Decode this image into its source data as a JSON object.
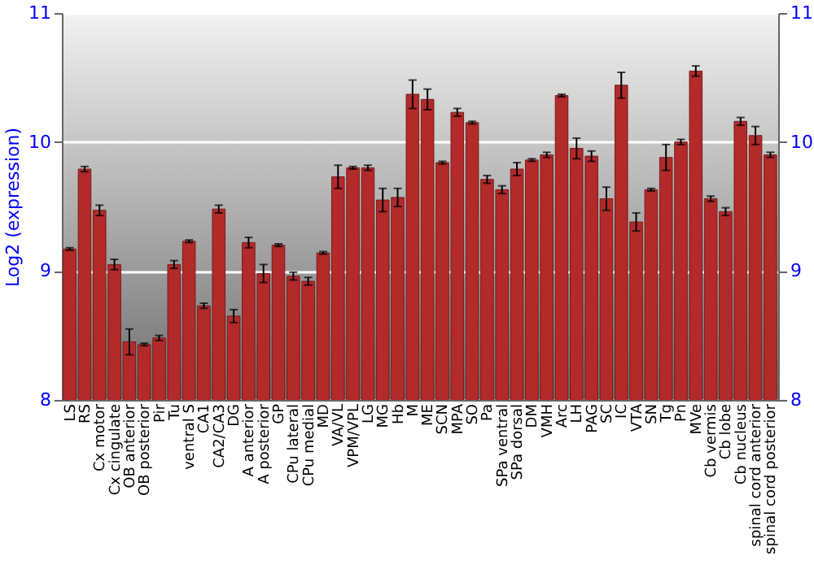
{
  "chart_data": {
    "type": "bar",
    "ylabel": "Log2 (expression)",
    "categories": [
      "LS",
      "RS",
      "Cx motor",
      "Cx cingulate",
      "OB anterior",
      "OB posterior",
      "Pir",
      "Tu",
      "ventral S",
      "CA1",
      "CA2/CA3",
      "DG",
      "A anterior",
      "A posterior",
      "GP",
      "CPu lateral",
      "CPu medial",
      "MD",
      "VA/VL",
      "VPM/VPL",
      "LG",
      "MG",
      "Hb",
      "M",
      "ME",
      "SCN",
      "MPA",
      "SO",
      "Pa",
      "SPa ventral",
      "SPa dorsal",
      "DM",
      "VMH",
      "Arc",
      "LH",
      "PAG",
      "SC",
      "IC",
      "VTA",
      "SN",
      "Tg",
      "Pn",
      "MVe",
      "Cb vermis",
      "Cb lobe",
      "Cb nucleus",
      "spinal cord anterior",
      "spinal cord posterior"
    ],
    "values": [
      9.17,
      9.79,
      9.47,
      9.05,
      8.45,
      8.43,
      8.48,
      9.05,
      9.23,
      8.73,
      9.48,
      8.65,
      9.22,
      8.98,
      9.2,
      8.96,
      8.92,
      9.14,
      9.73,
      9.8,
      9.8,
      9.55,
      9.57,
      10.37,
      10.33,
      9.84,
      10.23,
      10.15,
      9.71,
      9.63,
      9.79,
      9.86,
      9.9,
      10.36,
      9.95,
      9.89,
      9.56,
      10.44,
      9.38,
      9.63,
      9.88,
      10.0,
      10.55,
      9.56,
      9.46,
      10.16,
      10.05,
      9.9
    ],
    "errors": [
      0.01,
      0.02,
      0.04,
      0.04,
      0.1,
      0.01,
      0.02,
      0.03,
      0.01,
      0.02,
      0.03,
      0.05,
      0.04,
      0.07,
      0.01,
      0.03,
      0.03,
      0.01,
      0.09,
      0.01,
      0.02,
      0.09,
      0.07,
      0.11,
      0.08,
      0.01,
      0.03,
      0.01,
      0.03,
      0.03,
      0.05,
      0.01,
      0.02,
      0.01,
      0.08,
      0.04,
      0.09,
      0.1,
      0.07,
      0.01,
      0.1,
      0.02,
      0.04,
      0.02,
      0.03,
      0.03,
      0.07,
      0.02
    ],
    "color": "#b22a2a",
    "ylim": [
      8,
      11
    ],
    "yticks": [
      8,
      9,
      10,
      11
    ],
    "y2lim": [
      8,
      11
    ],
    "y2ticks": [
      8,
      9,
      10,
      11
    ],
    "grid": "y"
  }
}
